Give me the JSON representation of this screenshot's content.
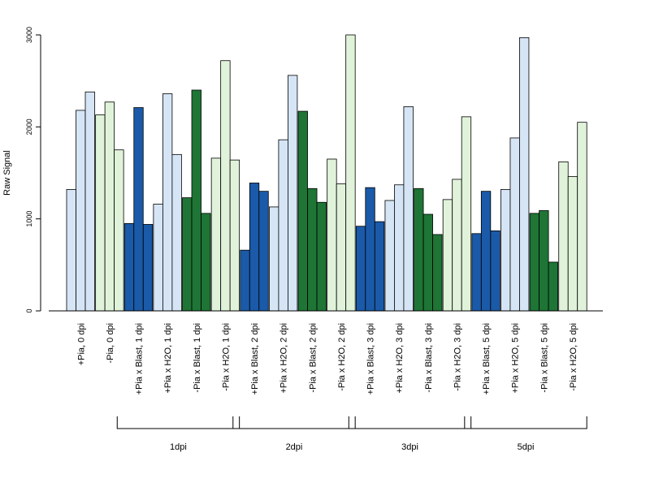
{
  "chart_data": {
    "type": "bar",
    "ylabel": "Raw Signal",
    "ylim": [
      0,
      3000
    ],
    "yticks": [
      0,
      1000,
      2000,
      3000
    ],
    "categories": [
      "+Pia, 0 dpi",
      "-Pia, 0 dpi",
      "+Pia x Blast, 1 dpi",
      "+Pia x H2O, 1 dpi",
      "-Pia x Blast, 1 dpi",
      "-Pia x H2O, 1 dpi",
      "+Pia x Blast, 2 dpi",
      "+Pia x H2O, 2 dpi",
      "-Pia x Blast, 2 dpi",
      "-Pia x H2O, 2 dpi",
      "+Pia x Blast, 3 dpi",
      "+Pia x H2O, 3 dpi",
      "-Pia x Blast, 3 dpi",
      "-Pia x H2O, 3 dpi",
      "+Pia x Blast, 5 dpi",
      "+Pia x H2O, 5 dpi",
      "-Pia x Blast, 5 dpi",
      "-Pia x H2O, 5 dpi"
    ],
    "values": [
      [
        1320,
        2180,
        2380
      ],
      [
        2130,
        2270,
        1750
      ],
      [
        950,
        2210,
        940
      ],
      [
        1160,
        2360,
        1700
      ],
      [
        1230,
        2400,
        1060
      ],
      [
        1660,
        2720,
        1640
      ],
      [
        660,
        1390,
        1300
      ],
      [
        1130,
        1860,
        2560
      ],
      [
        2170,
        1330,
        1180
      ],
      [
        1650,
        1380,
        3000
      ],
      [
        920,
        1340,
        970
      ],
      [
        1200,
        1370,
        2220
      ],
      [
        1330,
        1050,
        830
      ],
      [
        1210,
        1430,
        2110
      ],
      [
        840,
        1300,
        870
      ],
      [
        1320,
        1880,
        2970
      ],
      [
        1060,
        1090,
        530
      ],
      [
        1620,
        1460,
        2050
      ]
    ],
    "bar_colors": [
      "#d6e5f5",
      "#e0f3da",
      "#1a5aa8",
      "#d6e5f5",
      "#1e7535",
      "#e0f3da",
      "#1a5aa8",
      "#d6e5f5",
      "#1e7535",
      "#e0f3da",
      "#1a5aa8",
      "#d6e5f5",
      "#1e7535",
      "#e0f3da",
      "#1a5aa8",
      "#d6e5f5",
      "#1e7535",
      "#e0f3da"
    ],
    "groups": [
      {
        "label": "1dpi",
        "from": 2,
        "to": 5
      },
      {
        "label": "2dpi",
        "from": 6,
        "to": 9
      },
      {
        "label": "3dpi",
        "from": 10,
        "to": 13
      },
      {
        "label": "5dpi",
        "from": 14,
        "to": 17
      }
    ]
  }
}
